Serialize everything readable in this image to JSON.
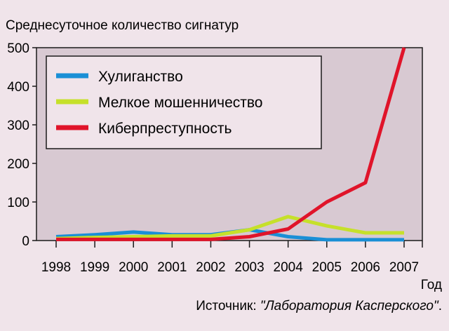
{
  "chart_data": {
    "type": "line",
    "ylabel": "Среднесуточное количество сигнатур",
    "xlabel": "Год",
    "categories": [
      "1998",
      "1999",
      "2000",
      "2001",
      "2002",
      "2003",
      "2004",
      "2005",
      "2006",
      "2007"
    ],
    "ylim": [
      0,
      500
    ],
    "yticks": [
      "0",
      "100",
      "200",
      "300",
      "400",
      "500"
    ],
    "grid": false,
    "legend_position": "top-left",
    "series": [
      {
        "name": "Хулиганство",
        "color": "#1a8fd6",
        "values": [
          10,
          15,
          22,
          15,
          15,
          28,
          10,
          2,
          2,
          2
        ]
      },
      {
        "name": "Мелкое мошенничество",
        "color": "#c6e02a",
        "values": [
          5,
          8,
          10,
          12,
          12,
          28,
          62,
          38,
          20,
          20
        ]
      },
      {
        "name": "Киберпреступность",
        "color": "#e0142a",
        "values": [
          3,
          3,
          3,
          3,
          3,
          10,
          30,
          100,
          150,
          500
        ]
      }
    ]
  },
  "source": {
    "prefix": "Источник: ",
    "name": "\"Лаборатория Касперского\"",
    "suffix": "."
  }
}
